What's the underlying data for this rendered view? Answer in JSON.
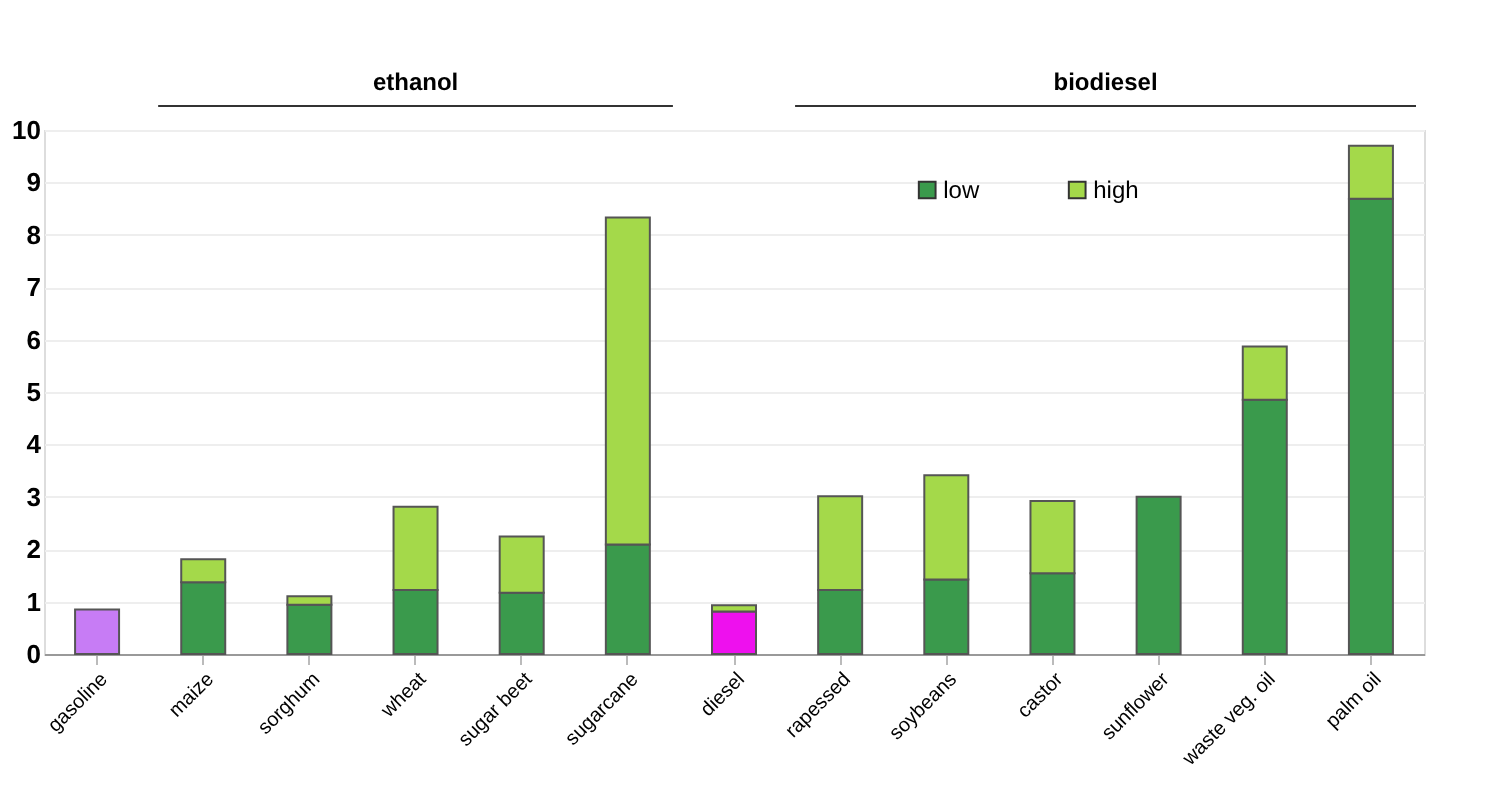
{
  "chart_data": {
    "type": "bar",
    "stacked": true,
    "categories": [
      "gasoline",
      "maize",
      "sorghum",
      "wheat",
      "sugar beet",
      "sugarcane",
      "diesel",
      "rapessed",
      "soybeans",
      "castor",
      "sunflower",
      "waste veg. oil",
      "palm oil"
    ],
    "series": [
      {
        "name": "low",
        "color": "#3a9a4c",
        "colors": [
          "#c77cf5",
          "#3a9a4c",
          "#3a9a4c",
          "#3a9a4c",
          "#3a9a4c",
          "#3a9a4c",
          "#ee10ee",
          "#3a9a4c",
          "#3a9a4c",
          "#3a9a4c",
          "#3a9a4c",
          "#3a9a4c",
          "#3a9a4c"
        ],
        "values": [
          0.85,
          1.37,
          0.94,
          1.22,
          1.17,
          2.09,
          0.81,
          1.22,
          1.42,
          1.54,
          3.0,
          4.85,
          8.69
        ]
      },
      {
        "name": "high",
        "color": "#a4d94a",
        "values": [
          null,
          0.44,
          0.16,
          1.59,
          1.07,
          6.24,
          0.12,
          1.79,
          1.99,
          1.38,
          null,
          1.02,
          1.01
        ]
      }
    ],
    "ylim": [
      0,
      10
    ],
    "yticks": [
      0,
      1,
      2,
      3,
      4,
      5,
      6,
      7,
      8,
      9,
      10
    ],
    "grid": "y",
    "legend": "top right",
    "annotations": [
      "ethanol",
      "biodiesel"
    ]
  }
}
